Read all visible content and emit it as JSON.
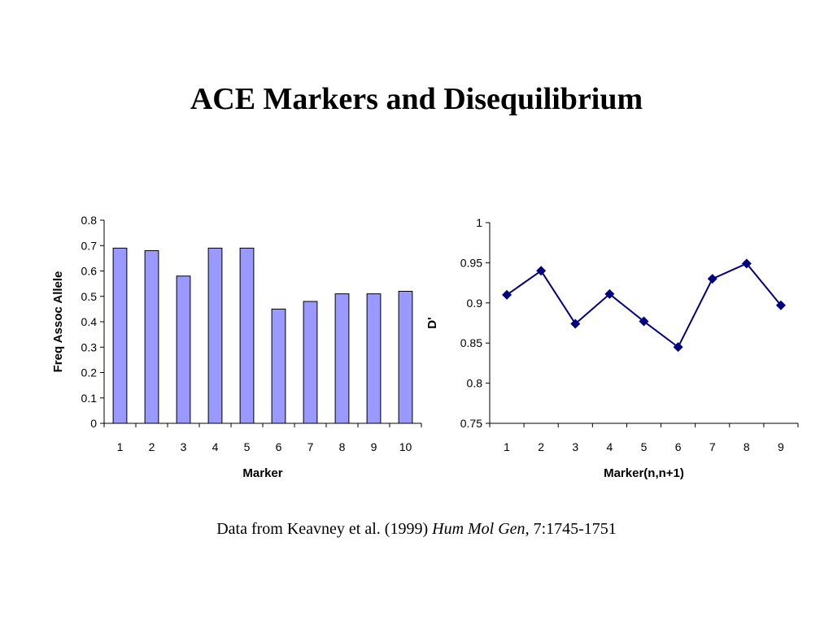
{
  "title": "ACE Markers and Disequilibrium",
  "caption": {
    "prefix": "Data from Keavney et al. (1999) ",
    "journal": "Hum Mol Gen",
    "suffix": ", 7:1745-1751"
  },
  "colors": {
    "bar_fill": "#9999ff",
    "bar_stroke": "#000000",
    "line": "#000080",
    "axis": "#000000"
  },
  "chart_data": [
    {
      "type": "bar",
      "categories": [
        "1",
        "2",
        "3",
        "4",
        "5",
        "6",
        "7",
        "8",
        "9",
        "10"
      ],
      "values": [
        0.69,
        0.68,
        0.58,
        0.69,
        0.69,
        0.45,
        0.48,
        0.51,
        0.51,
        0.52
      ],
      "xlabel": "Marker",
      "ylabel": "Freq Assoc Allele",
      "ylim": [
        0,
        0.8
      ],
      "yticks": [
        "0",
        "0.1",
        "0.2",
        "0.3",
        "0.4",
        "0.5",
        "0.6",
        "0.7",
        "0.8"
      ],
      "grid": false
    },
    {
      "type": "line",
      "categories": [
        "1",
        "2",
        "3",
        "4",
        "5",
        "6",
        "7",
        "8",
        "9"
      ],
      "values": [
        0.91,
        0.94,
        0.874,
        0.911,
        0.877,
        0.845,
        0.93,
        0.949,
        0.897
      ],
      "xlabel": "Marker(n,n+1)",
      "ylabel": "D'",
      "ylim": [
        0.75,
        1
      ],
      "yticks": [
        "0.75",
        "0.8",
        "0.85",
        "0.9",
        "0.95",
        "1"
      ],
      "marker": "diamond",
      "grid": false
    }
  ]
}
